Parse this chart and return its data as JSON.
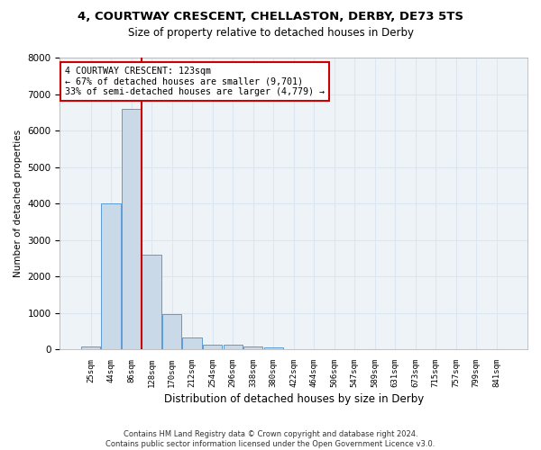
{
  "title1": "4, COURTWAY CRESCENT, CHELLASTON, DERBY, DE73 5TS",
  "title2": "Size of property relative to detached houses in Derby",
  "xlabel": "Distribution of detached houses by size in Derby",
  "ylabel": "Number of detached properties",
  "footnote": "Contains HM Land Registry data © Crown copyright and database right 2024.\nContains public sector information licensed under the Open Government Licence v3.0.",
  "bin_labels": [
    "25sqm",
    "44sqm",
    "86sqm",
    "128sqm",
    "170sqm",
    "212sqm",
    "254sqm",
    "296sqm",
    "338sqm",
    "380sqm",
    "422sqm",
    "464sqm",
    "506sqm",
    "547sqm",
    "589sqm",
    "631sqm",
    "673sqm",
    "715sqm",
    "757sqm",
    "799sqm",
    "841sqm"
  ],
  "bar_heights": [
    80,
    4000,
    6600,
    2600,
    960,
    320,
    130,
    120,
    80,
    60,
    0,
    0,
    0,
    0,
    0,
    0,
    0,
    0,
    0,
    0,
    0
  ],
  "bar_color": "#c9d9e8",
  "bar_edge_color": "#5b9bd5",
  "grid_color": "#dce6f1",
  "background_color": "#eef3f8",
  "annotation_box_text": "4 COURTWAY CRESCENT: 123sqm\n← 67% of detached houses are smaller (9,701)\n33% of semi-detached houses are larger (4,779) →",
  "annotation_box_color": "#cc0000",
  "vline_color": "#cc0000",
  "ylim": [
    0,
    8000
  ],
  "yticks": [
    0,
    1000,
    2000,
    3000,
    4000,
    5000,
    6000,
    7000,
    8000
  ]
}
